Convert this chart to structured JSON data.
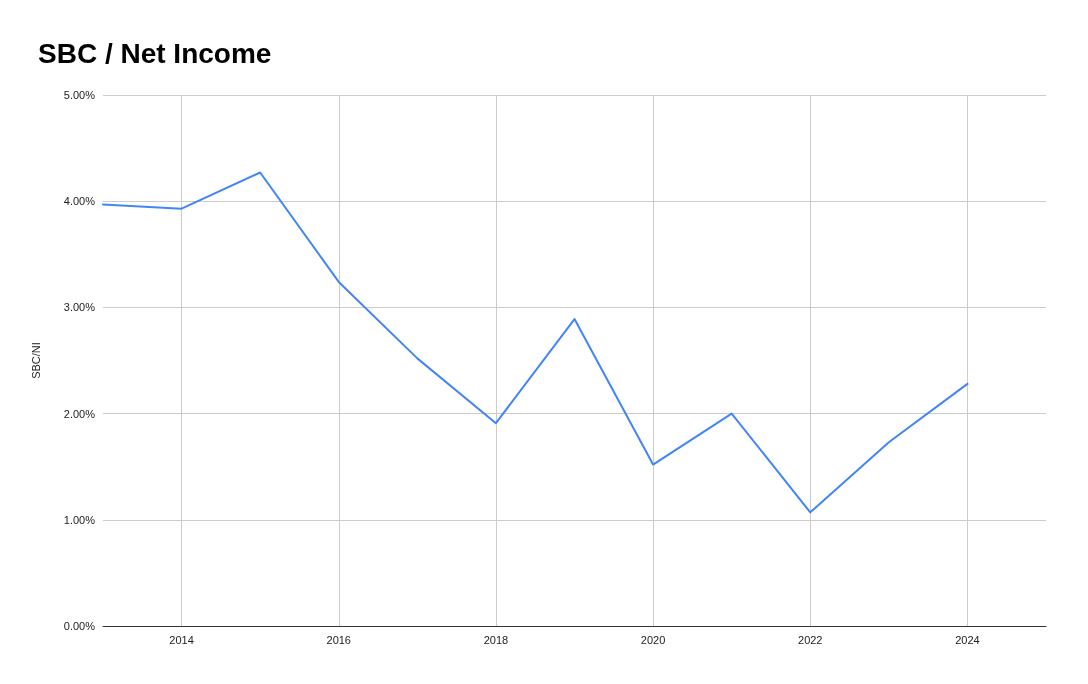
{
  "chart_data": {
    "type": "line",
    "title": "SBC / Net Income",
    "ylabel": "SBC/NI",
    "x": [
      2013,
      2014,
      2015,
      2016,
      2017,
      2018,
      2019,
      2020,
      2021,
      2022,
      2023,
      2024
    ],
    "series": [
      {
        "color": "#4285f4",
        "values": [
          3.97,
          3.93,
          4.27,
          3.24,
          2.52,
          1.91,
          2.89,
          1.52,
          2.0,
          1.07,
          1.73,
          2.28
        ]
      }
    ],
    "xlim": [
      2013,
      2025
    ],
    "xticks": [
      2014,
      2016,
      2018,
      2020,
      2022,
      2024
    ],
    "ylim": [
      0,
      5
    ],
    "yticks": [
      {
        "value": 0,
        "label": "0.00%"
      },
      {
        "value": 1,
        "label": "1.00%"
      },
      {
        "value": 2,
        "label": "2.00%"
      },
      {
        "value": 3,
        "label": "3.00%"
      },
      {
        "value": 4,
        "label": "4.00%"
      },
      {
        "value": 5,
        "label": "5.00%"
      }
    ],
    "grid": true,
    "marker": "none",
    "line_style": "solid"
  }
}
